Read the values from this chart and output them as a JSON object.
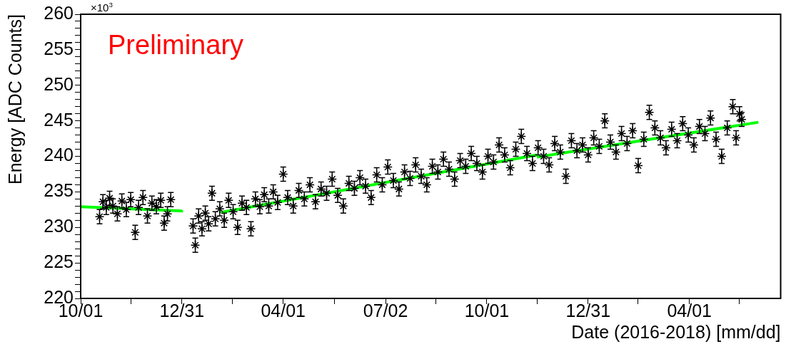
{
  "chart_data": {
    "type": "scatter",
    "xlabel": "Date (2016-2018) [mm/dd]",
    "ylabel": "Energy [ADC Counts]",
    "annotations": [
      "Preliminary",
      "×10$^{3}$"
    ],
    "xlim": [
      "2016-10-01",
      "2018-06-22"
    ],
    "xticks": [
      {
        "value": "2016-10-01",
        "label": "10/01"
      },
      {
        "value": "2016-11-15",
        "label": null
      },
      {
        "value": "2016-12-31",
        "label": "12/31"
      },
      {
        "value": "2017-02-14",
        "label": null
      },
      {
        "value": "2017-04-01",
        "label": "04/01"
      },
      {
        "value": "2017-05-17",
        "label": null
      },
      {
        "value": "2017-07-02",
        "label": "07/02"
      },
      {
        "value": "2017-08-16",
        "label": null
      },
      {
        "value": "2017-10-01",
        "label": "10/01"
      },
      {
        "value": "2017-11-15",
        "label": null
      },
      {
        "value": "2017-12-31",
        "label": "12/31"
      },
      {
        "value": "2018-02-14",
        "label": null
      },
      {
        "value": "2018-04-01",
        "label": "04/01"
      },
      {
        "value": "2018-05-16",
        "label": null
      }
    ],
    "ylim": [
      220,
      260
    ],
    "yticks": [
      220,
      {
        "value": 221,
        "label": null
      },
      {
        "value": 222,
        "label": null
      },
      {
        "value": 223,
        "label": null
      },
      {
        "value": 224,
        "label": null
      },
      225,
      {
        "value": 226,
        "label": null
      },
      {
        "value": 227,
        "label": null
      },
      {
        "value": 228,
        "label": null
      },
      {
        "value": 229,
        "label": null
      },
      230,
      {
        "value": 231,
        "label": null
      },
      {
        "value": 232,
        "label": null
      },
      {
        "value": 233,
        "label": null
      },
      {
        "value": 234,
        "label": null
      },
      235,
      {
        "value": 236,
        "label": null
      },
      {
        "value": 237,
        "label": null
      },
      {
        "value": 238,
        "label": null
      },
      {
        "value": 239,
        "label": null
      },
      240,
      {
        "value": 241,
        "label": null
      },
      {
        "value": 242,
        "label": null
      },
      {
        "value": 243,
        "label": null
      },
      {
        "value": 244,
        "label": null
      },
      245,
      {
        "value": 246,
        "label": null
      },
      {
        "value": 247,
        "label": null
      },
      {
        "value": 248,
        "label": null
      },
      {
        "value": 249,
        "label": null
      },
      250,
      {
        "value": 251,
        "label": null
      },
      {
        "value": 252,
        "label": null
      },
      {
        "value": 253,
        "label": null
      },
      {
        "value": 254,
        "label": null
      },
      255,
      {
        "value": 256,
        "label": null
      },
      {
        "value": 257,
        "label": null
      },
      {
        "value": 258,
        "label": null
      },
      {
        "value": 259,
        "label": null
      },
      260
    ],
    "grid": false,
    "legend": false,
    "series": [
      {
        "type": "scatter",
        "color": "#000000",
        "marker": "cross",
        "x": [
          "2016-10-18",
          "2016-10-21",
          "2016-10-24",
          "2016-10-27",
          "2016-10-30",
          "2016-11-03",
          "2016-11-07",
          "2016-11-11",
          "2016-11-15",
          "2016-11-19",
          "2016-11-22",
          "2016-11-26",
          "2016-11-30",
          "2016-12-04",
          "2016-12-08",
          "2016-12-12",
          "2016-12-15",
          "2016-12-18",
          "2016-12-21",
          "2017-01-10",
          "2017-01-12",
          "2017-01-15",
          "2017-01-18",
          "2017-01-21",
          "2017-01-24",
          "2017-01-27",
          "2017-01-30",
          "2017-02-03",
          "2017-02-07",
          "2017-02-11",
          "2017-02-15",
          "2017-02-19",
          "2017-02-23",
          "2017-02-27",
          "2017-03-03",
          "2017-03-07",
          "2017-03-11",
          "2017-03-15",
          "2017-03-19",
          "2017-03-23",
          "2017-03-27",
          "2017-04-01",
          "2017-04-05",
          "2017-04-10",
          "2017-04-15",
          "2017-04-20",
          "2017-04-25",
          "2017-04-30",
          "2017-05-05",
          "2017-05-10",
          "2017-05-15",
          "2017-05-20",
          "2017-05-25",
          "2017-05-30",
          "2017-06-04",
          "2017-06-09",
          "2017-06-14",
          "2017-06-19",
          "2017-06-24",
          "2017-06-29",
          "2017-07-04",
          "2017-07-09",
          "2017-07-14",
          "2017-07-19",
          "2017-07-24",
          "2017-07-29",
          "2017-08-03",
          "2017-08-08",
          "2017-08-13",
          "2017-08-18",
          "2017-08-23",
          "2017-08-28",
          "2017-09-02",
          "2017-09-07",
          "2017-09-12",
          "2017-09-17",
          "2017-09-22",
          "2017-09-27",
          "2017-10-02",
          "2017-10-07",
          "2017-10-12",
          "2017-10-17",
          "2017-10-22",
          "2017-10-27",
          "2017-11-01",
          "2017-11-06",
          "2017-11-11",
          "2017-11-16",
          "2017-11-21",
          "2017-11-26",
          "2017-12-01",
          "2017-12-06",
          "2017-12-11",
          "2017-12-16",
          "2017-12-21",
          "2017-12-26",
          "2017-12-31",
          "2018-01-05",
          "2018-01-10",
          "2018-01-15",
          "2018-01-20",
          "2018-01-25",
          "2018-01-30",
          "2018-02-04",
          "2018-02-09",
          "2018-02-14",
          "2018-02-19",
          "2018-02-24",
          "2018-03-01",
          "2018-03-06",
          "2018-03-11",
          "2018-03-16",
          "2018-03-21",
          "2018-03-26",
          "2018-03-31",
          "2018-04-05",
          "2018-04-10",
          "2018-04-15",
          "2018-04-20",
          "2018-04-25",
          "2018-04-30",
          "2018-05-05",
          "2018-05-10",
          "2018-05-13",
          "2018-05-16",
          "2018-05-18"
        ],
        "values": [
          231.5,
          233.6,
          232.8,
          234.1,
          233.0,
          231.9,
          233.7,
          232.5,
          233.9,
          229.3,
          232.8,
          234.2,
          231.6,
          233.4,
          232.9,
          233.8,
          230.6,
          231.9,
          233.9,
          230.2,
          227.5,
          231.6,
          229.8,
          232.0,
          230.5,
          234.8,
          231.2,
          232.6,
          231.0,
          233.8,
          232.2,
          230.0,
          233.4,
          232.8,
          229.8,
          234.0,
          232.9,
          234.6,
          233.0,
          235.0,
          233.5,
          237.5,
          234.2,
          233.0,
          235.2,
          234.0,
          236.0,
          233.6,
          235.4,
          234.8,
          236.8,
          234.5,
          233.0,
          236.2,
          235.5,
          237.0,
          235.8,
          234.2,
          237.4,
          236.0,
          238.5,
          236.6,
          235.4,
          237.8,
          236.9,
          238.8,
          237.2,
          236.0,
          238.6,
          237.8,
          239.6,
          238.2,
          236.8,
          239.4,
          238.6,
          240.4,
          239.0,
          237.8,
          240.0,
          239.2,
          241.6,
          240.2,
          238.4,
          241.0,
          242.8,
          240.4,
          239.0,
          241.2,
          240.0,
          238.8,
          241.8,
          240.6,
          237.2,
          242.2,
          240.8,
          241.6,
          240.2,
          242.6,
          241.4,
          245.0,
          242.0,
          240.6,
          243.2,
          241.8,
          243.6,
          238.7,
          242.4,
          246.2,
          244.0,
          242.6,
          241.2,
          243.8,
          242.2,
          244.6,
          243.0,
          241.6,
          244.2,
          243.2,
          245.4,
          242.4,
          240.0,
          244.0,
          247.0,
          242.6,
          246.0,
          245.2
        ],
        "errors": [
          1,
          1,
          1,
          1,
          1,
          1,
          1,
          1,
          1,
          1,
          1,
          1,
          1,
          1,
          1,
          1,
          1,
          1,
          1,
          1,
          1,
          1,
          1,
          1,
          1,
          1,
          1,
          1,
          1,
          1,
          1,
          1,
          1,
          1,
          1,
          1,
          1,
          1,
          1,
          1,
          1,
          1,
          1,
          1,
          1,
          1,
          1,
          1,
          1,
          1,
          1,
          1,
          1,
          1,
          1,
          1,
          1,
          1,
          1,
          1,
          1,
          1,
          1,
          1,
          1,
          1,
          1,
          1,
          1,
          1,
          1,
          1,
          1,
          1,
          1,
          1,
          1,
          1,
          1,
          1,
          1,
          1,
          1,
          1,
          1,
          1,
          1,
          1,
          1,
          1,
          1,
          1,
          1,
          1,
          1,
          1,
          1,
          1,
          1,
          1,
          1,
          1,
          1,
          1,
          1,
          1,
          1,
          1,
          1,
          1,
          1,
          1,
          1,
          1,
          1,
          1,
          1,
          1,
          1,
          1,
          1,
          1,
          1,
          1,
          1,
          1
        ]
      },
      {
        "type": "line",
        "color": "#00ff00",
        "marker": "none",
        "x": [
          "2016-10-01",
          "2017-01-01"
        ],
        "values": [
          232.9,
          232.3
        ]
      },
      {
        "type": "line",
        "color": "#00ff00",
        "marker": "none",
        "x": [
          "2017-02-04",
          "2017-11-15"
        ],
        "values": [
          232.1,
          240.2
        ]
      },
      {
        "type": "line",
        "color": "#00ff00",
        "marker": "none",
        "x": [
          "2017-11-15",
          "2018-06-02"
        ],
        "values": [
          239.9,
          244.8
        ]
      }
    ]
  }
}
